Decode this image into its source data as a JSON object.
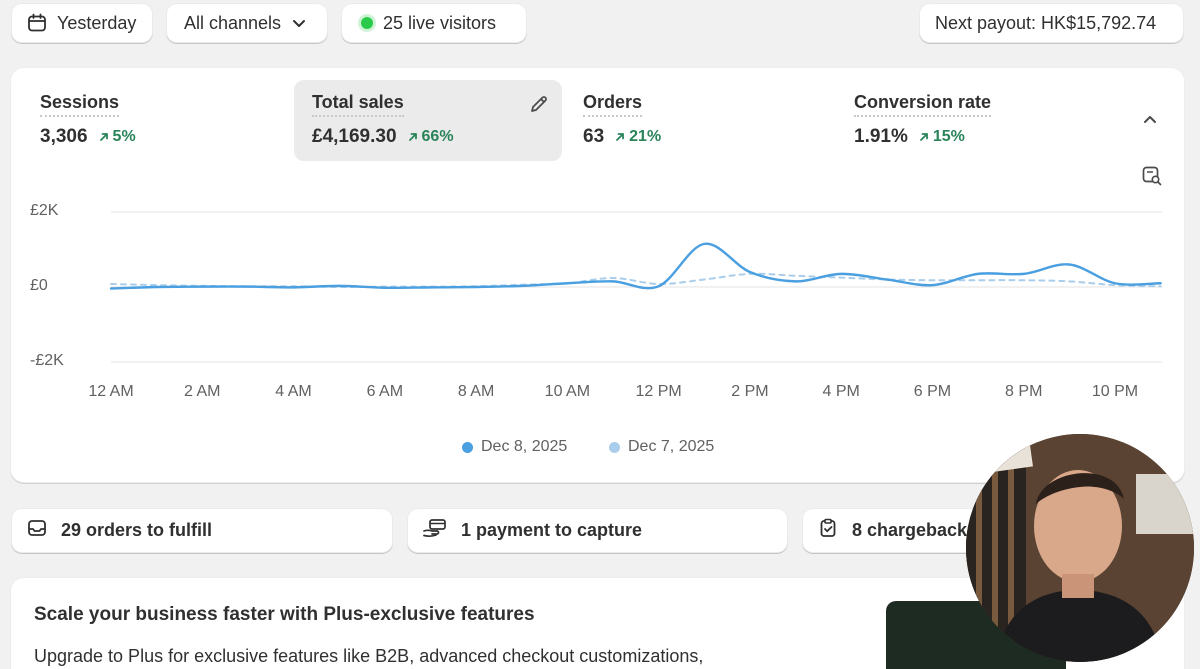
{
  "topbar": {
    "date_label": "Yesterday",
    "channel_label": "All channels",
    "live_label": "25 live visitors",
    "payout_label": "Next payout: HK$15,792.74"
  },
  "metrics": [
    {
      "label": "Sessions",
      "value": "3,306",
      "delta": "5%"
    },
    {
      "label": "Total sales",
      "value": "£4,169.30",
      "delta": "66%"
    },
    {
      "label": "Orders",
      "value": "63",
      "delta": "21%"
    },
    {
      "label": "Conversion rate",
      "value": "1.91%",
      "delta": "15%"
    }
  ],
  "chart_data": {
    "type": "line",
    "y_tick_labels": [
      "£2K",
      "£0",
      "-£2K"
    ],
    "ylim": [
      -2000,
      2000
    ],
    "x_tick_labels": [
      "12 AM",
      "2 AM",
      "4 AM",
      "6 AM",
      "8 AM",
      "10 AM",
      "12 PM",
      "2 PM",
      "4 PM",
      "6 PM",
      "8 PM",
      "10 PM"
    ],
    "x": [
      0,
      1,
      2,
      3,
      4,
      5,
      6,
      7,
      8,
      9,
      10,
      11,
      12,
      13,
      14,
      15,
      16,
      17,
      18,
      19,
      20,
      21,
      22,
      23
    ],
    "series": [
      {
        "name": "Dec 8, 2025",
        "color": "#4a9fe0",
        "style": "solid",
        "values": [
          -40,
          0,
          10,
          10,
          -10,
          30,
          -20,
          -10,
          0,
          30,
          100,
          150,
          20,
          1150,
          400,
          150,
          350,
          200,
          50,
          350,
          350,
          600,
          100,
          100
        ]
      },
      {
        "name": "Dec 7, 2025",
        "color": "#a9cdea",
        "style": "dashed",
        "values": [
          80,
          50,
          30,
          20,
          20,
          0,
          10,
          10,
          20,
          60,
          100,
          240,
          80,
          200,
          350,
          300,
          250,
          200,
          180,
          180,
          180,
          150,
          50,
          20
        ]
      }
    ],
    "grid": true,
    "legend_position": "bottom-center"
  },
  "tasks": [
    {
      "label": "29 orders to fulfill",
      "icon": "inbox-icon"
    },
    {
      "label": "1 payment to capture",
      "icon": "hand-payment-icon"
    },
    {
      "label": "8 chargebacks",
      "icon": "clipboard-check-icon"
    }
  ],
  "promo": {
    "title": "Scale your business faster with Plus-exclusive features",
    "body": "Upgrade to Plus for exclusive features like B2B, advanced checkout customizations,"
  }
}
